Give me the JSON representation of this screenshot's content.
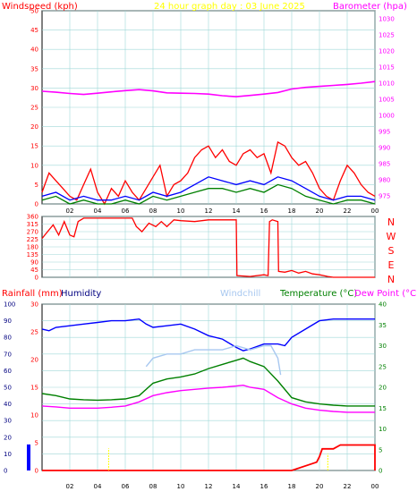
{
  "colors": {
    "frame": "#000000",
    "grid": "#9fd8d8",
    "wind_axis": "#ff0000",
    "baro_axis": "#ff00ff",
    "title": "#ffff00",
    "humidity_axis": "#000080",
    "rain_axis": "#ff0000",
    "windchill": "#a8c8f0",
    "temperature_axis": "#008000",
    "dewpoint": "#ff00ff",
    "bar": "#0000ff"
  },
  "chart_data": [
    {
      "id": "wind-barometer",
      "type": "line",
      "title": "24 hour graph day : 03 June 2025",
      "left_label": "Windspeed (kph)",
      "right_label": "Barometer (hpa)",
      "x_ticks": [
        "02",
        "04",
        "06",
        "08",
        "10",
        "12",
        "14",
        "16",
        "18",
        "20",
        "22",
        "00"
      ],
      "x_range": [
        0,
        24
      ],
      "left_ticks": [
        "50",
        "45",
        "40",
        "35",
        "30",
        "25",
        "20",
        "15",
        "10",
        "5",
        "0"
      ],
      "left_range": [
        0,
        50
      ],
      "right_ticks": [
        "1030",
        "1025",
        "1020",
        "1015",
        "1010",
        "1005",
        "1000",
        "995",
        "990",
        "985",
        "980",
        "975"
      ],
      "right_range": [
        972.5,
        1032.5
      ],
      "grid": true,
      "series": [
        {
          "key": "barometer",
          "axis": "right",
          "color": "#ff00ff",
          "x": [
            0,
            1,
            2,
            3,
            4,
            5,
            6,
            7,
            8,
            9,
            10,
            11,
            12,
            13,
            14,
            15,
            16,
            17,
            18,
            19,
            20,
            21,
            22,
            23,
            24
          ],
          "y": [
            1007.5,
            1007.2,
            1006.8,
            1006.5,
            1006.9,
            1007.3,
            1007.7,
            1008.0,
            1007.6,
            1007.0,
            1006.9,
            1006.8,
            1006.6,
            1006.1,
            1005.8,
            1006.2,
            1006.6,
            1007.1,
            1008.2,
            1008.7,
            1009.0,
            1009.3,
            1009.6,
            1010.0,
            1010.5
          ]
        },
        {
          "key": "gust",
          "axis": "left",
          "color": "#ff0000",
          "x": [
            0,
            0.5,
            1,
            1.5,
            2,
            2.5,
            3,
            3.5,
            4,
            4.5,
            5,
            5.5,
            6,
            6.5,
            7,
            7.5,
            8,
            8.5,
            9,
            9.5,
            10,
            10.5,
            11,
            11.5,
            12,
            12.5,
            13,
            13.5,
            14,
            14.5,
            15,
            15.5,
            16,
            16.5,
            17,
            17.5,
            18,
            18.5,
            19,
            19.5,
            20,
            20.5,
            21,
            21.5,
            22,
            22.5,
            23,
            23.5,
            24
          ],
          "y": [
            3,
            8,
            6,
            4,
            2,
            1,
            5,
            9,
            3,
            0,
            4,
            2,
            6,
            3,
            1,
            4,
            7,
            10,
            2,
            5,
            6,
            8,
            12,
            14,
            15,
            12,
            14,
            11,
            10,
            13,
            14,
            12,
            13,
            8,
            16,
            15,
            12,
            10,
            11,
            8,
            4,
            2,
            1,
            6,
            10,
            8,
            5,
            3,
            2
          ]
        },
        {
          "key": "average",
          "axis": "left",
          "color": "#0000ff",
          "x": [
            0,
            1,
            2,
            3,
            4,
            5,
            6,
            7,
            8,
            9,
            10,
            11,
            12,
            13,
            14,
            15,
            16,
            17,
            18,
            19,
            20,
            21,
            22,
            23,
            24
          ],
          "y": [
            2,
            3,
            1,
            2,
            1,
            1,
            2,
            1,
            3,
            2,
            3,
            5,
            7,
            6,
            5,
            6,
            5,
            7,
            6,
            4,
            2,
            1,
            2,
            2,
            1
          ]
        },
        {
          "key": "wind",
          "axis": "left",
          "color": "#008000",
          "x": [
            0,
            1,
            2,
            3,
            4,
            5,
            6,
            7,
            8,
            9,
            10,
            11,
            12,
            13,
            14,
            15,
            16,
            17,
            18,
            19,
            20,
            21,
            22,
            23,
            24
          ],
          "y": [
            1,
            2,
            0,
            1,
            0,
            0,
            1,
            0,
            2,
            1,
            2,
            3,
            4,
            4,
            3,
            4,
            3,
            5,
            4,
            2,
            1,
            0,
            1,
            1,
            0
          ]
        }
      ]
    },
    {
      "id": "wind-direction",
      "type": "line",
      "left_ticks": [
        "360",
        "315",
        "270",
        "225",
        "180",
        "135",
        "90",
        "45",
        "0"
      ],
      "left_range": [
        0,
        360
      ],
      "right_ticks": [
        "N",
        "W",
        "S",
        "E",
        "N"
      ],
      "x_range": [
        0,
        24
      ],
      "grid": true,
      "series": [
        {
          "key": "direction",
          "color": "#ff0000",
          "x": [
            0,
            0.3,
            0.8,
            1.2,
            1.6,
            2,
            2.3,
            2.6,
            3,
            6.5,
            6.8,
            7.2,
            7.7,
            8.2,
            8.6,
            9,
            9.5,
            10,
            11,
            12,
            13,
            14,
            14.05,
            15,
            16,
            16.3,
            16.4,
            16.6,
            17,
            17.05,
            17.5,
            18,
            18.5,
            19,
            19.5,
            20,
            20.3,
            20.6,
            21,
            24
          ],
          "y": [
            230,
            260,
            310,
            250,
            330,
            250,
            240,
            330,
            350,
            350,
            300,
            270,
            320,
            300,
            330,
            300,
            340,
            335,
            330,
            340,
            340,
            340,
            10,
            5,
            15,
            10,
            330,
            340,
            330,
            35,
            30,
            40,
            25,
            35,
            20,
            15,
            10,
            5,
            0,
            0
          ]
        }
      ]
    },
    {
      "id": "temperature-humidity-rain",
      "type": "line",
      "rain_label": "Rainfall (mm)",
      "humidity_label": "Humidity",
      "windchill_label": "Windchill",
      "temperature_label": "Temperature (°C)",
      "dewpoint_label": "Dew Point (°C)",
      "x_ticks": [
        "02",
        "04",
        "06",
        "08",
        "10",
        "12",
        "14",
        "16",
        "18",
        "20",
        "22",
        "00"
      ],
      "x_range": [
        0,
        24
      ],
      "humidity_ticks": [
        "100",
        "90",
        "80",
        "70",
        "60",
        "50",
        "40",
        "30",
        "20",
        "10",
        "0"
      ],
      "humidity_range": [
        0,
        100
      ],
      "rain_ticks": [
        "30",
        "25",
        "20",
        "15",
        "10",
        "5",
        "0"
      ],
      "rain_range": [
        0,
        30
      ],
      "temperature_ticks": [
        "40",
        "35",
        "30",
        "25",
        "20",
        "15",
        "10",
        "5",
        "0"
      ],
      "temperature_range": [
        0,
        40
      ],
      "rain_bar_value": 4.7,
      "grid": true,
      "series": [
        {
          "key": "humidity",
          "color": "#0000ff",
          "x": [
            0,
            0.5,
            1,
            2,
            3,
            4,
            5,
            6,
            7,
            7.5,
            8,
            9,
            10,
            11,
            12,
            13,
            14,
            14.5,
            15,
            16,
            17,
            17.5,
            18,
            19,
            20,
            21,
            22,
            23,
            24
          ],
          "y": [
            85,
            84,
            86,
            87,
            88,
            89,
            90,
            90,
            91,
            88,
            86,
            87,
            88,
            85,
            81,
            79,
            74,
            72,
            73,
            76,
            76,
            75,
            80,
            85,
            90,
            91,
            91,
            91,
            91
          ]
        },
        {
          "key": "windchill",
          "color": "#a8c8f0",
          "x": [
            0,
            7.4,
            7.5,
            8,
            9,
            10,
            11,
            12,
            13,
            14,
            15,
            16,
            16.5,
            17,
            17.2,
            17.5,
            24
          ],
          "y": [
            null,
            null,
            25,
            27,
            28,
            28,
            29,
            29,
            29,
            30,
            29,
            30,
            30,
            27,
            23,
            null,
            null
          ]
        },
        {
          "key": "temperature",
          "color": "#008000",
          "x": [
            0,
            1,
            2,
            3,
            4,
            5,
            6,
            7,
            8,
            9,
            10,
            11,
            12,
            13,
            14,
            14.5,
            15,
            16,
            17,
            18,
            19,
            20,
            21,
            22,
            23,
            24
          ],
          "y": [
            18.5,
            18.0,
            17.2,
            17.0,
            16.9,
            17.0,
            17.2,
            18.0,
            21.0,
            22.0,
            22.5,
            23.2,
            24.5,
            25.5,
            26.5,
            27.0,
            26.2,
            25.0,
            21.5,
            17.5,
            16.5,
            16.0,
            15.7,
            15.5,
            15.5,
            15.5
          ]
        },
        {
          "key": "dewpoint",
          "color": "#ff00ff",
          "x": [
            0,
            1,
            2,
            3,
            4,
            5,
            6,
            7,
            8,
            9,
            10,
            11,
            12,
            13,
            14,
            14.5,
            15,
            16,
            17,
            18,
            19,
            20,
            21,
            22,
            23,
            24
          ],
          "y": [
            15.5,
            15.3,
            15.0,
            15.0,
            15.0,
            15.2,
            15.5,
            16.5,
            18.0,
            18.7,
            19.2,
            19.5,
            19.8,
            20.0,
            20.3,
            20.5,
            20.0,
            19.5,
            17.5,
            16.0,
            15.0,
            14.5,
            14.2,
            14.0,
            14.0,
            14.0
          ]
        },
        {
          "key": "rain",
          "color": "#ff0000",
          "x": [
            0,
            18,
            19.8,
            20,
            20.2,
            21,
            21.5,
            24,
            24
          ],
          "y": [
            0,
            0,
            1.5,
            2.5,
            3.9,
            3.9,
            4.6,
            4.6,
            0
          ]
        },
        {
          "key": "rain_rate",
          "color": "#ffff00",
          "x": [
            4.8,
            4.8,
            20.6,
            20.6
          ],
          "y": [
            0,
            4,
            0,
            3
          ]
        }
      ]
    }
  ]
}
